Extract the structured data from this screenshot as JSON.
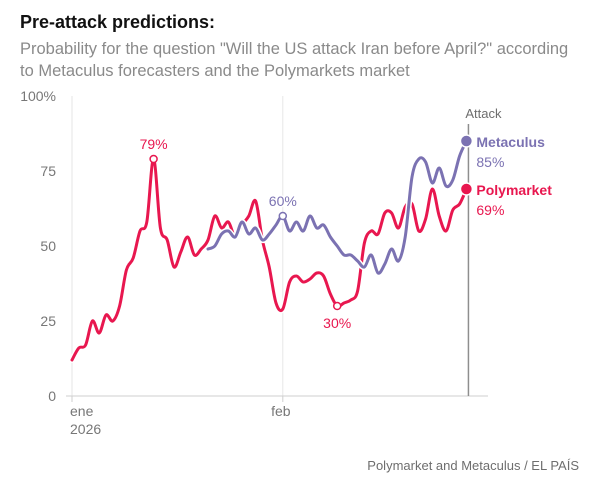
{
  "title": "Pre-attack predictions:",
  "subtitle": "Probability for the question \"Will the US attack Iran before April?\" according to Metaculus forecasters and the Polymarkets market",
  "source": "Polymarket and Metaculus / EL PAÍS",
  "colors": {
    "metaculus": "#7b72b2",
    "polymarket": "#e8174f"
  },
  "chart_data": {
    "type": "line",
    "ylim": [
      0,
      100
    ],
    "xlim": [
      0,
      60
    ],
    "y_ticks": [
      {
        "value": 0,
        "label": "0"
      },
      {
        "value": 25,
        "label": "25"
      },
      {
        "value": 50,
        "label": "50"
      },
      {
        "value": 75,
        "label": "75"
      },
      {
        "value": 100,
        "label": "100%"
      }
    ],
    "x_ticks": [
      {
        "value": 0,
        "label": "ene",
        "sublabel": "2026"
      },
      {
        "value": 31,
        "label": "feb",
        "sublabel": ""
      }
    ],
    "grid": "vertical",
    "event": {
      "x": 58.3,
      "label": "Attack"
    },
    "series": [
      {
        "name": "Polymarket",
        "end_label": "69%",
        "x": [
          0,
          1,
          2,
          3,
          4,
          5,
          6,
          7,
          8,
          9,
          10,
          11,
          12,
          13,
          14,
          15,
          16,
          17,
          18,
          19,
          20,
          21,
          22,
          23,
          24,
          25,
          26,
          27,
          28,
          29,
          30,
          31,
          32,
          33,
          34,
          35,
          36,
          37,
          38,
          39,
          40,
          41,
          42,
          43,
          44,
          45,
          46,
          47,
          48,
          49,
          50,
          51,
          52,
          53,
          54,
          55,
          56,
          57,
          58
        ],
        "values": [
          12,
          16,
          17,
          25,
          21,
          27,
          25,
          30,
          42,
          46,
          55,
          58,
          79,
          56,
          52,
          43,
          48,
          53,
          47,
          49,
          52,
          60,
          56,
          58,
          53,
          57,
          60,
          65,
          52,
          43,
          31,
          29,
          38,
          40,
          38,
          39,
          41,
          40,
          34,
          30,
          31,
          32,
          35,
          51,
          55,
          54,
          61,
          61,
          56,
          63,
          64,
          55,
          59,
          69,
          60,
          55,
          62,
          64,
          69
        ]
      },
      {
        "name": "Metaculus",
        "end_label": "85%",
        "x": [
          20,
          21,
          22,
          23,
          24,
          25,
          26,
          27,
          28,
          29,
          30,
          31,
          32,
          33,
          34,
          35,
          36,
          37,
          38,
          39,
          40,
          41,
          42,
          43,
          44,
          45,
          46,
          47,
          48,
          49,
          50,
          51,
          52,
          53,
          54,
          55,
          56,
          57,
          58
        ],
        "values": [
          49,
          50,
          54,
          55,
          53,
          58,
          54,
          56,
          52,
          54,
          57,
          60,
          55,
          58,
          55,
          60,
          56,
          57,
          53,
          50,
          47,
          47,
          45,
          43,
          47,
          41,
          44,
          49,
          45,
          53,
          73,
          79,
          78,
          71,
          76,
          70,
          72,
          80,
          85
        ]
      }
    ],
    "annotations": [
      {
        "series": "Polymarket",
        "x": 12,
        "label": "79%",
        "position": "above"
      },
      {
        "series": "Metaculus",
        "x": 31,
        "label": "60%",
        "position": "above"
      },
      {
        "series": "Polymarket",
        "x": 39,
        "label": "30%",
        "position": "below"
      }
    ]
  }
}
